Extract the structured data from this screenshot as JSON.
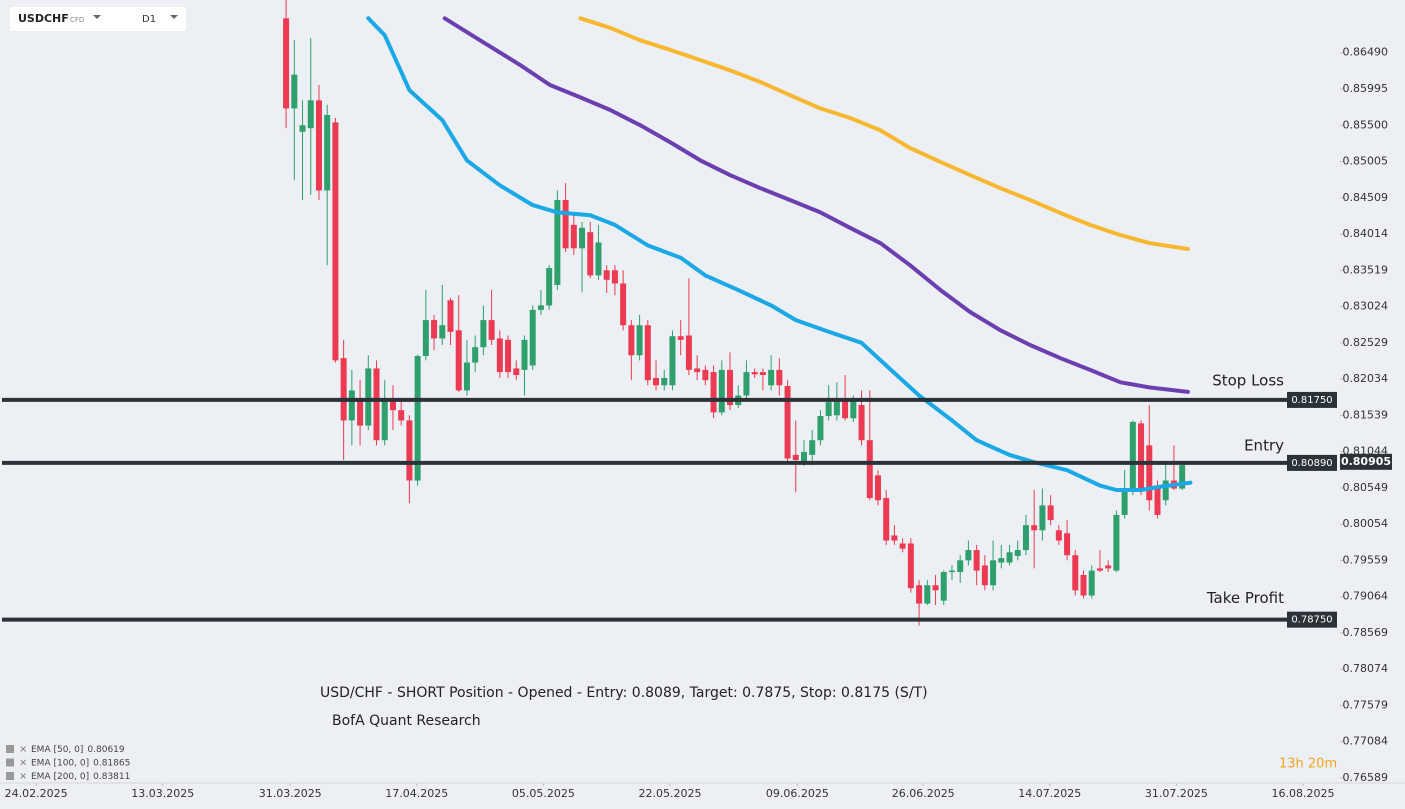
{
  "chart_data": {
    "type": "candlestick",
    "symbol": "USDCHF",
    "instrument": "CFD",
    "timeframe": "D1",
    "annotation": "USD/CHF - SHORT Position - Opened - Entry: 0.8089, Target: 0.7875, Stop: 0.8175 (S/T)",
    "source": "BofA Quant Research",
    "countdown": "13h 20m",
    "up_color": "#2f9f6e",
    "down_color": "#ec3a52",
    "xlim": [
      -34.8,
      128.2
    ],
    "ylim": [
      0.7652,
      0.8721
    ],
    "xticks": [
      {
        "value": -30.4,
        "label": "24.02.2025"
      },
      {
        "value": -15,
        "label": "13.03.2025"
      },
      {
        "value": 0.5,
        "label": "31.03.2025"
      },
      {
        "value": 15.9,
        "label": "17.04.2025"
      },
      {
        "value": 31.3,
        "label": "05.05.2025"
      },
      {
        "value": 46.7,
        "label": "22.05.2025"
      },
      {
        "value": 62.2,
        "label": "09.06.2025"
      },
      {
        "value": 77.5,
        "label": "26.06.2025"
      },
      {
        "value": 92.9,
        "label": "14.07.2025"
      },
      {
        "value": 108.3,
        "label": "31.07.2025"
      },
      {
        "value": 123.7,
        "label": "16.08.2025"
      }
    ],
    "yticks": [
      {
        "value": 0.8649,
        "label": "0.86490"
      },
      {
        "value": 0.85995,
        "label": "0.85995"
      },
      {
        "value": 0.855,
        "label": "0.85500"
      },
      {
        "value": 0.85005,
        "label": "0.85005"
      },
      {
        "value": 0.84509,
        "label": "0.84509"
      },
      {
        "value": 0.84014,
        "label": "0.84014"
      },
      {
        "value": 0.83519,
        "label": "0.83519"
      },
      {
        "value": 0.83024,
        "label": "0.83024"
      },
      {
        "value": 0.82529,
        "label": "0.82529"
      },
      {
        "value": 0.82034,
        "label": "0.82034"
      },
      {
        "value": 0.81539,
        "label": "0.81539"
      },
      {
        "value": 0.81044,
        "label": "0.81044"
      },
      {
        "value": 0.80549,
        "label": "0.80549"
      },
      {
        "value": 0.80054,
        "label": "0.80054"
      },
      {
        "value": 0.79559,
        "label": "0.79559"
      },
      {
        "value": 0.79064,
        "label": "0.79064"
      },
      {
        "value": 0.78569,
        "label": "0.78569"
      },
      {
        "value": 0.78074,
        "label": "0.78074"
      },
      {
        "value": 0.77579,
        "label": "0.77579"
      },
      {
        "value": 0.77084,
        "label": "0.77084"
      },
      {
        "value": 0.76589,
        "label": "0.76589"
      }
    ],
    "open": [
      0.8696,
      0.8573,
      0.8541,
      0.8546,
      0.8584,
      0.8461,
      0.8554,
      0.8232,
      0.8147,
      0.8175,
      0.814,
      0.8218,
      0.812,
      0.8177,
      0.8161,
      0.8147,
      0.8065,
      0.8235,
      0.8284,
      0.8259,
      0.8311,
      0.827,
      0.8188,
      0.8226,
      0.8247,
      0.8284,
      0.8259,
      0.8257,
      0.8218,
      0.8216,
      0.8222,
      0.8298,
      0.8304,
      0.8332,
      0.8448,
      0.8414,
      0.8382,
      0.8404,
      0.8345,
      0.8352,
      0.8352,
      0.8334,
      0.8277,
      0.8236,
      0.8277,
      0.8205,
      0.8195,
      0.8195,
      0.8262,
      0.8263,
      0.8218,
      0.8216,
      0.8213,
      0.8158,
      0.8216,
      0.8168,
      0.8181,
      0.8213,
      0.8213,
      0.8195,
      0.8216,
      0.8194,
      0.81,
      0.809,
      0.81,
      0.812,
      0.8153,
      0.8154,
      0.8175,
      0.815,
      0.8168,
      0.812,
      0.8072,
      0.8041,
      0.799,
      0.7979,
      0.7979,
      0.7922,
      0.7897,
      0.7922,
      0.7901,
      0.794,
      0.794,
      0.7956,
      0.797,
      0.7949,
      0.7922,
      0.7953,
      0.7953,
      0.7962,
      0.797,
      0.8004,
      0.7997,
      0.8031,
      0.7997,
      0.7993,
      0.7963,
      0.7936,
      0.7908,
      0.7945,
      0.7949,
      0.7942,
      0.8018,
      0.8052,
      0.8143,
      0.8113,
      0.8058,
      0.8038,
      0.8065,
      0.8054
    ],
    "high": [
      0.8721,
      0.8666,
      0.8584,
      0.8669,
      0.8605,
      0.8578,
      0.856,
      0.8257,
      0.8216,
      0.8202,
      0.8236,
      0.8229,
      0.8202,
      0.8195,
      0.8175,
      0.8154,
      0.8237,
      0.8325,
      0.8291,
      0.8332,
      0.8314,
      0.8318,
      0.8257,
      0.8263,
      0.8304,
      0.8325,
      0.827,
      0.8263,
      0.8229,
      0.8263,
      0.8304,
      0.8325,
      0.8359,
      0.8461,
      0.8471,
      0.8427,
      0.8418,
      0.8418,
      0.8414,
      0.8359,
      0.8359,
      0.8352,
      0.8284,
      0.8291,
      0.8284,
      0.8229,
      0.8216,
      0.827,
      0.8284,
      0.8341,
      0.8236,
      0.8222,
      0.8222,
      0.8229,
      0.824,
      0.8195,
      0.8229,
      0.8218,
      0.8218,
      0.8236,
      0.8232,
      0.8202,
      0.8147,
      0.812,
      0.8134,
      0.8161,
      0.8195,
      0.8199,
      0.8209,
      0.8181,
      0.8188,
      0.8188,
      0.8079,
      0.8052,
      0.8004,
      0.7986,
      0.7986,
      0.7929,
      0.7929,
      0.7936,
      0.7942,
      0.7949,
      0.7963,
      0.7983,
      0.7977,
      0.7963,
      0.7983,
      0.7977,
      0.7977,
      0.7983,
      0.8018,
      0.8052,
      0.8054,
      0.8045,
      0.8004,
      0.8011,
      0.797,
      0.7942,
      0.7949,
      0.797,
      0.7956,
      0.8024,
      0.8079,
      0.8147,
      0.8147,
      0.8168,
      0.8065,
      0.809,
      0.8113,
      0.809
    ],
    "low": [
      0.8546,
      0.8475,
      0.8448,
      0.8455,
      0.8448,
      0.8359,
      0.8226,
      0.8093,
      0.8113,
      0.8113,
      0.8134,
      0.8113,
      0.8113,
      0.8134,
      0.814,
      0.8034,
      0.8058,
      0.8229,
      0.8243,
      0.825,
      0.825,
      0.8186,
      0.8181,
      0.8213,
      0.8236,
      0.825,
      0.8205,
      0.8205,
      0.8202,
      0.8181,
      0.8216,
      0.8291,
      0.8298,
      0.8325,
      0.8377,
      0.8373,
      0.8322,
      0.8341,
      0.8339,
      0.8321,
      0.8318,
      0.827,
      0.8202,
      0.8229,
      0.8195,
      0.8188,
      0.8188,
      0.8188,
      0.8236,
      0.8209,
      0.8202,
      0.8195,
      0.815,
      0.8154,
      0.8161,
      0.8164,
      0.8175,
      0.8205,
      0.8188,
      0.8188,
      0.8181,
      0.809,
      0.8049,
      0.8085,
      0.8086,
      0.8113,
      0.8147,
      0.8147,
      0.8147,
      0.8145,
      0.8113,
      0.8038,
      0.8031,
      0.7977,
      0.7977,
      0.7967,
      0.7912,
      0.7867,
      0.7895,
      0.7895,
      0.7895,
      0.7929,
      0.7925,
      0.7949,
      0.7922,
      0.7915,
      0.7915,
      0.7945,
      0.7949,
      0.7956,
      0.7963,
      0.7945,
      0.7983,
      0.8004,
      0.7977,
      0.7956,
      0.7908,
      0.7904,
      0.7904,
      0.794,
      0.794,
      0.794,
      0.8013,
      0.8045,
      0.8045,
      0.8024,
      0.8013,
      0.8031,
      0.8052,
      0.8052
    ],
    "close": [
      0.8573,
      0.8619,
      0.855,
      0.8584,
      0.8461,
      0.8564,
      0.8229,
      0.8147,
      0.8188,
      0.814,
      0.8218,
      0.812,
      0.8177,
      0.8161,
      0.8147,
      0.8065,
      0.8235,
      0.8284,
      0.8259,
      0.8277,
      0.8268,
      0.8188,
      0.8226,
      0.8247,
      0.8284,
      0.8257,
      0.8213,
      0.8213,
      0.8209,
      0.8257,
      0.8298,
      0.8304,
      0.8355,
      0.8448,
      0.8382,
      0.8382,
      0.841,
      0.8345,
      0.839,
      0.8339,
      0.8334,
      0.8277,
      0.8236,
      0.8277,
      0.8202,
      0.8195,
      0.8205,
      0.8262,
      0.8257,
      0.8216,
      0.8213,
      0.8202,
      0.8158,
      0.8216,
      0.8168,
      0.8181,
      0.8213,
      0.821,
      0.8209,
      0.8216,
      0.8195,
      0.8095,
      0.8093,
      0.8104,
      0.812,
      0.8153,
      0.8172,
      0.8175,
      0.815,
      0.8175,
      0.812,
      0.8041,
      0.8038,
      0.7983,
      0.7983,
      0.7972,
      0.7918,
      0.7897,
      0.7922,
      0.7915,
      0.794,
      0.7942,
      0.7956,
      0.797,
      0.7942,
      0.7922,
      0.7956,
      0.7959,
      0.7967,
      0.797,
      0.8004,
      0.7997,
      0.8031,
      0.8011,
      0.7983,
      0.7963,
      0.7915,
      0.7908,
      0.7942,
      0.7942,
      0.7945,
      0.8018,
      0.8052,
      0.8145,
      0.8052,
      0.8038,
      0.8018,
      0.8065,
      0.8054,
      0.8086
    ],
    "series": [
      {
        "name": "EMA [50, 0]",
        "last_label": "0.80619",
        "color": "#1ba8e6",
        "x": [
          10,
          12,
          15,
          19,
          22,
          26,
          30,
          33,
          37,
          40,
          44,
          48,
          51,
          55,
          59,
          62,
          66,
          70,
          73,
          77,
          81,
          84,
          88,
          91,
          95,
          99,
          101,
          104,
          106,
          110
        ],
        "values": [
          0.8696,
          0.8673,
          0.8598,
          0.8557,
          0.8502,
          0.8468,
          0.8441,
          0.8431,
          0.8427,
          0.8414,
          0.8386,
          0.8369,
          0.8345,
          0.8325,
          0.8304,
          0.8284,
          0.8268,
          0.8253,
          0.8222,
          0.8181,
          0.8147,
          0.812,
          0.81,
          0.809,
          0.8079,
          0.8058,
          0.8052,
          0.8052,
          0.8056,
          0.8062
        ]
      },
      {
        "name": "EMA [100, 0]",
        "last_label": "0.81865",
        "color": "#6b3fb0",
        "x": [
          19.3,
          23.6,
          28.5,
          32.1,
          35.8,
          39.4,
          43.1,
          46.7,
          50.4,
          54,
          57.7,
          61.3,
          65,
          68.6,
          72.3,
          75.9,
          79.6,
          83.2,
          86.9,
          90.5,
          94.2,
          97.8,
          101.5,
          105.1,
          109.7
        ],
        "values": [
          0.8696,
          0.8666,
          0.8632,
          0.8605,
          0.8588,
          0.8571,
          0.855,
          0.8527,
          0.8502,
          0.8482,
          0.8464,
          0.8448,
          0.8431,
          0.841,
          0.8389,
          0.8359,
          0.8325,
          0.8295,
          0.827,
          0.825,
          0.8232,
          0.8216,
          0.8199,
          0.8192,
          0.8186
        ]
      },
      {
        "name": "EMA [200, 0]",
        "last_label": "0.83811",
        "color": "#f7b731",
        "x": [
          35.8,
          39.4,
          43.1,
          46.7,
          50.4,
          54,
          57.7,
          61.3,
          65,
          68.6,
          72.3,
          75.9,
          79.6,
          83.2,
          86.9,
          90.5,
          94.2,
          97.8,
          101.5,
          105.1,
          109.7
        ],
        "values": [
          0.8696,
          0.8683,
          0.8666,
          0.8653,
          0.8639,
          0.8625,
          0.8609,
          0.8591,
          0.8573,
          0.856,
          0.8543,
          0.8519,
          0.85,
          0.8482,
          0.8464,
          0.8448,
          0.843,
          0.8414,
          0.84,
          0.8389,
          0.8381
        ]
      }
    ],
    "levels": [
      {
        "name": "Stop Loss",
        "value": 0.8175,
        "value_label": "0.81750"
      },
      {
        "name": "Entry",
        "value": 0.8089,
        "value_label": "0.80890"
      },
      {
        "name": "Take Profit",
        "value": 0.7875,
        "value_label": "0.78750"
      }
    ],
    "last_price": {
      "value": 0.80905,
      "label": "0.80905"
    }
  }
}
